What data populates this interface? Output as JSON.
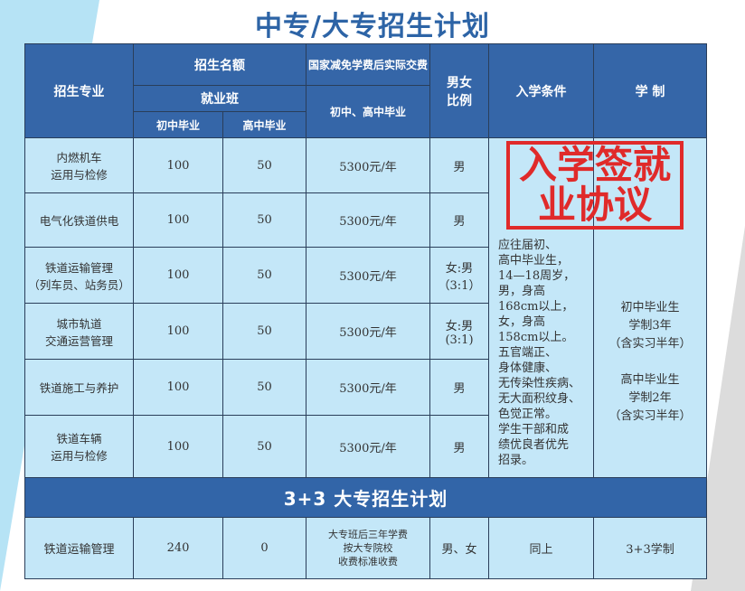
{
  "title": "中专/大专招生计划",
  "header": {
    "major": "招生专业",
    "quota": "招生名额",
    "fee_label": "国家减免学费后实际交费",
    "class": "就业班",
    "junior": "初中毕业",
    "senior": "高中毕业",
    "fee_sub": "初中、高中毕业",
    "ratio": "男女比例",
    "cond": "入学条件",
    "system": "学 制"
  },
  "rows": [
    {
      "major": "内燃机车\n运用与检修",
      "junior": "100",
      "senior": "50",
      "fee": "5300元/年",
      "ratio": "男"
    },
    {
      "major": "电气化铁道供电",
      "junior": "100",
      "senior": "50",
      "fee": "5300元/年",
      "ratio": "男"
    },
    {
      "major": "铁道运输管理\n（列车员、站务员）",
      "junior": "100",
      "senior": "50",
      "fee": "5300元/年",
      "ratio": "女:男\n（3:1）"
    },
    {
      "major": "城市轨道\n交通运营管理",
      "junior": "100",
      "senior": "50",
      "fee": "5300元/年",
      "ratio": "女:男\n(3:1)"
    },
    {
      "major": "铁道施工与养护",
      "junior": "100",
      "senior": "50",
      "fee": "5300元/年",
      "ratio": "男"
    },
    {
      "major": "铁道车辆\n运用与检修",
      "junior": "100",
      "senior": "50",
      "fee": "5300元/年",
      "ratio": "男"
    }
  ],
  "conditions": "应往届初、\n高中毕业生，\n14—18周岁，\n男，身高\n168cm以上，\n女，身高\n158cm以上。\n五官端正、\n身体健康、\n无传染性疾病、\n无大面积纹身、\n色觉正常。\n学生干部和成\n绩优良者优先\n招录。",
  "system": "初中毕业生\n学制3年\n（含实习半年）\n\n高中毕业生\n学制2年\n（含实习半年）",
  "band": "3+3 大专招生计划",
  "row33": {
    "major": "铁道运输管理",
    "junior": "240",
    "senior": "0",
    "fee": "大专班后三年学费\n按大专院校\n收费标准收费",
    "ratio": "男、女",
    "cond": "同上",
    "system": "3+3学制"
  },
  "stamp": "入学签就业协议",
  "colors": {
    "header": "#3566a8",
    "cell": "#c4e7f8",
    "stamp": "#e02a2a"
  }
}
